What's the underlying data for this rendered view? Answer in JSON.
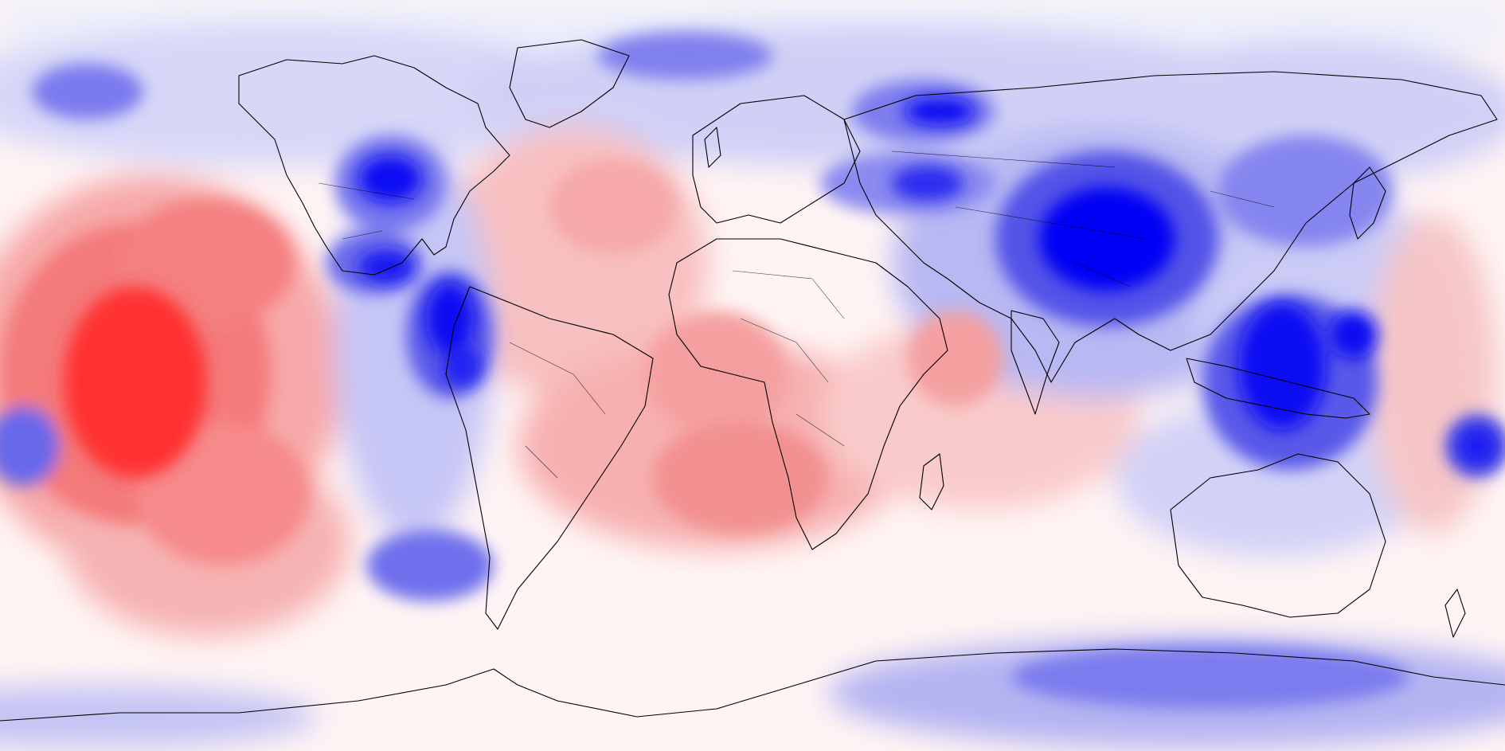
{
  "map": {
    "projection": "equirectangular",
    "field_type": "filled contour anomaly",
    "colors": {
      "positive_strong": "#ff1e1e",
      "positive_mid": "#f58a8a",
      "positive_weak": "#fbd6d6",
      "neutral": "#fff4f4",
      "negative_weak": "#d4d4fb",
      "negative_mid": "#7f7ff0",
      "negative_strong": "#0000f5",
      "coastline": "#000000"
    },
    "icons": [
      "coastline-outline",
      "country-border-outline"
    ]
  }
}
